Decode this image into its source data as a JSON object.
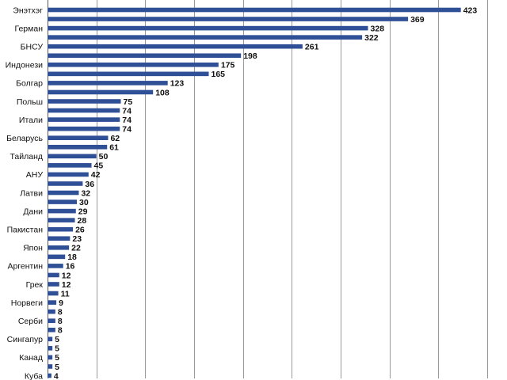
{
  "chart_data": {
    "type": "bar",
    "orientation": "horizontal",
    "xlim": [
      0,
      450
    ],
    "x_gridlines": [
      0,
      50,
      100,
      150,
      200,
      250,
      300,
      350,
      400,
      450
    ],
    "grid": true,
    "legend": "none",
    "bar_color": "#2f4f96",
    "categories": [
      "Энэтхэг",
      "",
      "Герман",
      "",
      "БНСУ",
      "",
      "Индонези",
      "",
      "Болгар",
      "",
      "Польш",
      "",
      "Итали",
      "",
      "Беларусь",
      "",
      "Тайланд",
      "",
      "АНУ",
      "",
      "Латви",
      "",
      "Дани",
      "",
      "Пакистан",
      "",
      "Япон",
      "",
      "Аргентин",
      "",
      "Грек",
      "",
      "Норвеги",
      "",
      "Серби",
      "",
      "Сингапур",
      "",
      "Канад",
      "",
      "Куба"
    ],
    "values": [
      423,
      369,
      328,
      322,
      261,
      198,
      175,
      165,
      123,
      108,
      75,
      74,
      74,
      74,
      62,
      61,
      50,
      45,
      42,
      36,
      32,
      30,
      29,
      28,
      26,
      23,
      22,
      18,
      16,
      12,
      12,
      11,
      9,
      8,
      8,
      8,
      5,
      5,
      5,
      5,
      4
    ],
    "value_labels": [
      "423",
      "369",
      "328",
      "322",
      "261",
      "198",
      "175",
      "165",
      "123",
      "108",
      "75",
      "74",
      "74",
      "74",
      "62",
      "61",
      "50",
      "45",
      "42",
      "36",
      "32",
      "30",
      "29",
      "28",
      "26",
      "23",
      "22",
      "18",
      "16",
      "12",
      "12",
      "11",
      "9",
      "8",
      "8",
      "8",
      "5",
      "5",
      "5",
      "5",
      "4"
    ]
  }
}
